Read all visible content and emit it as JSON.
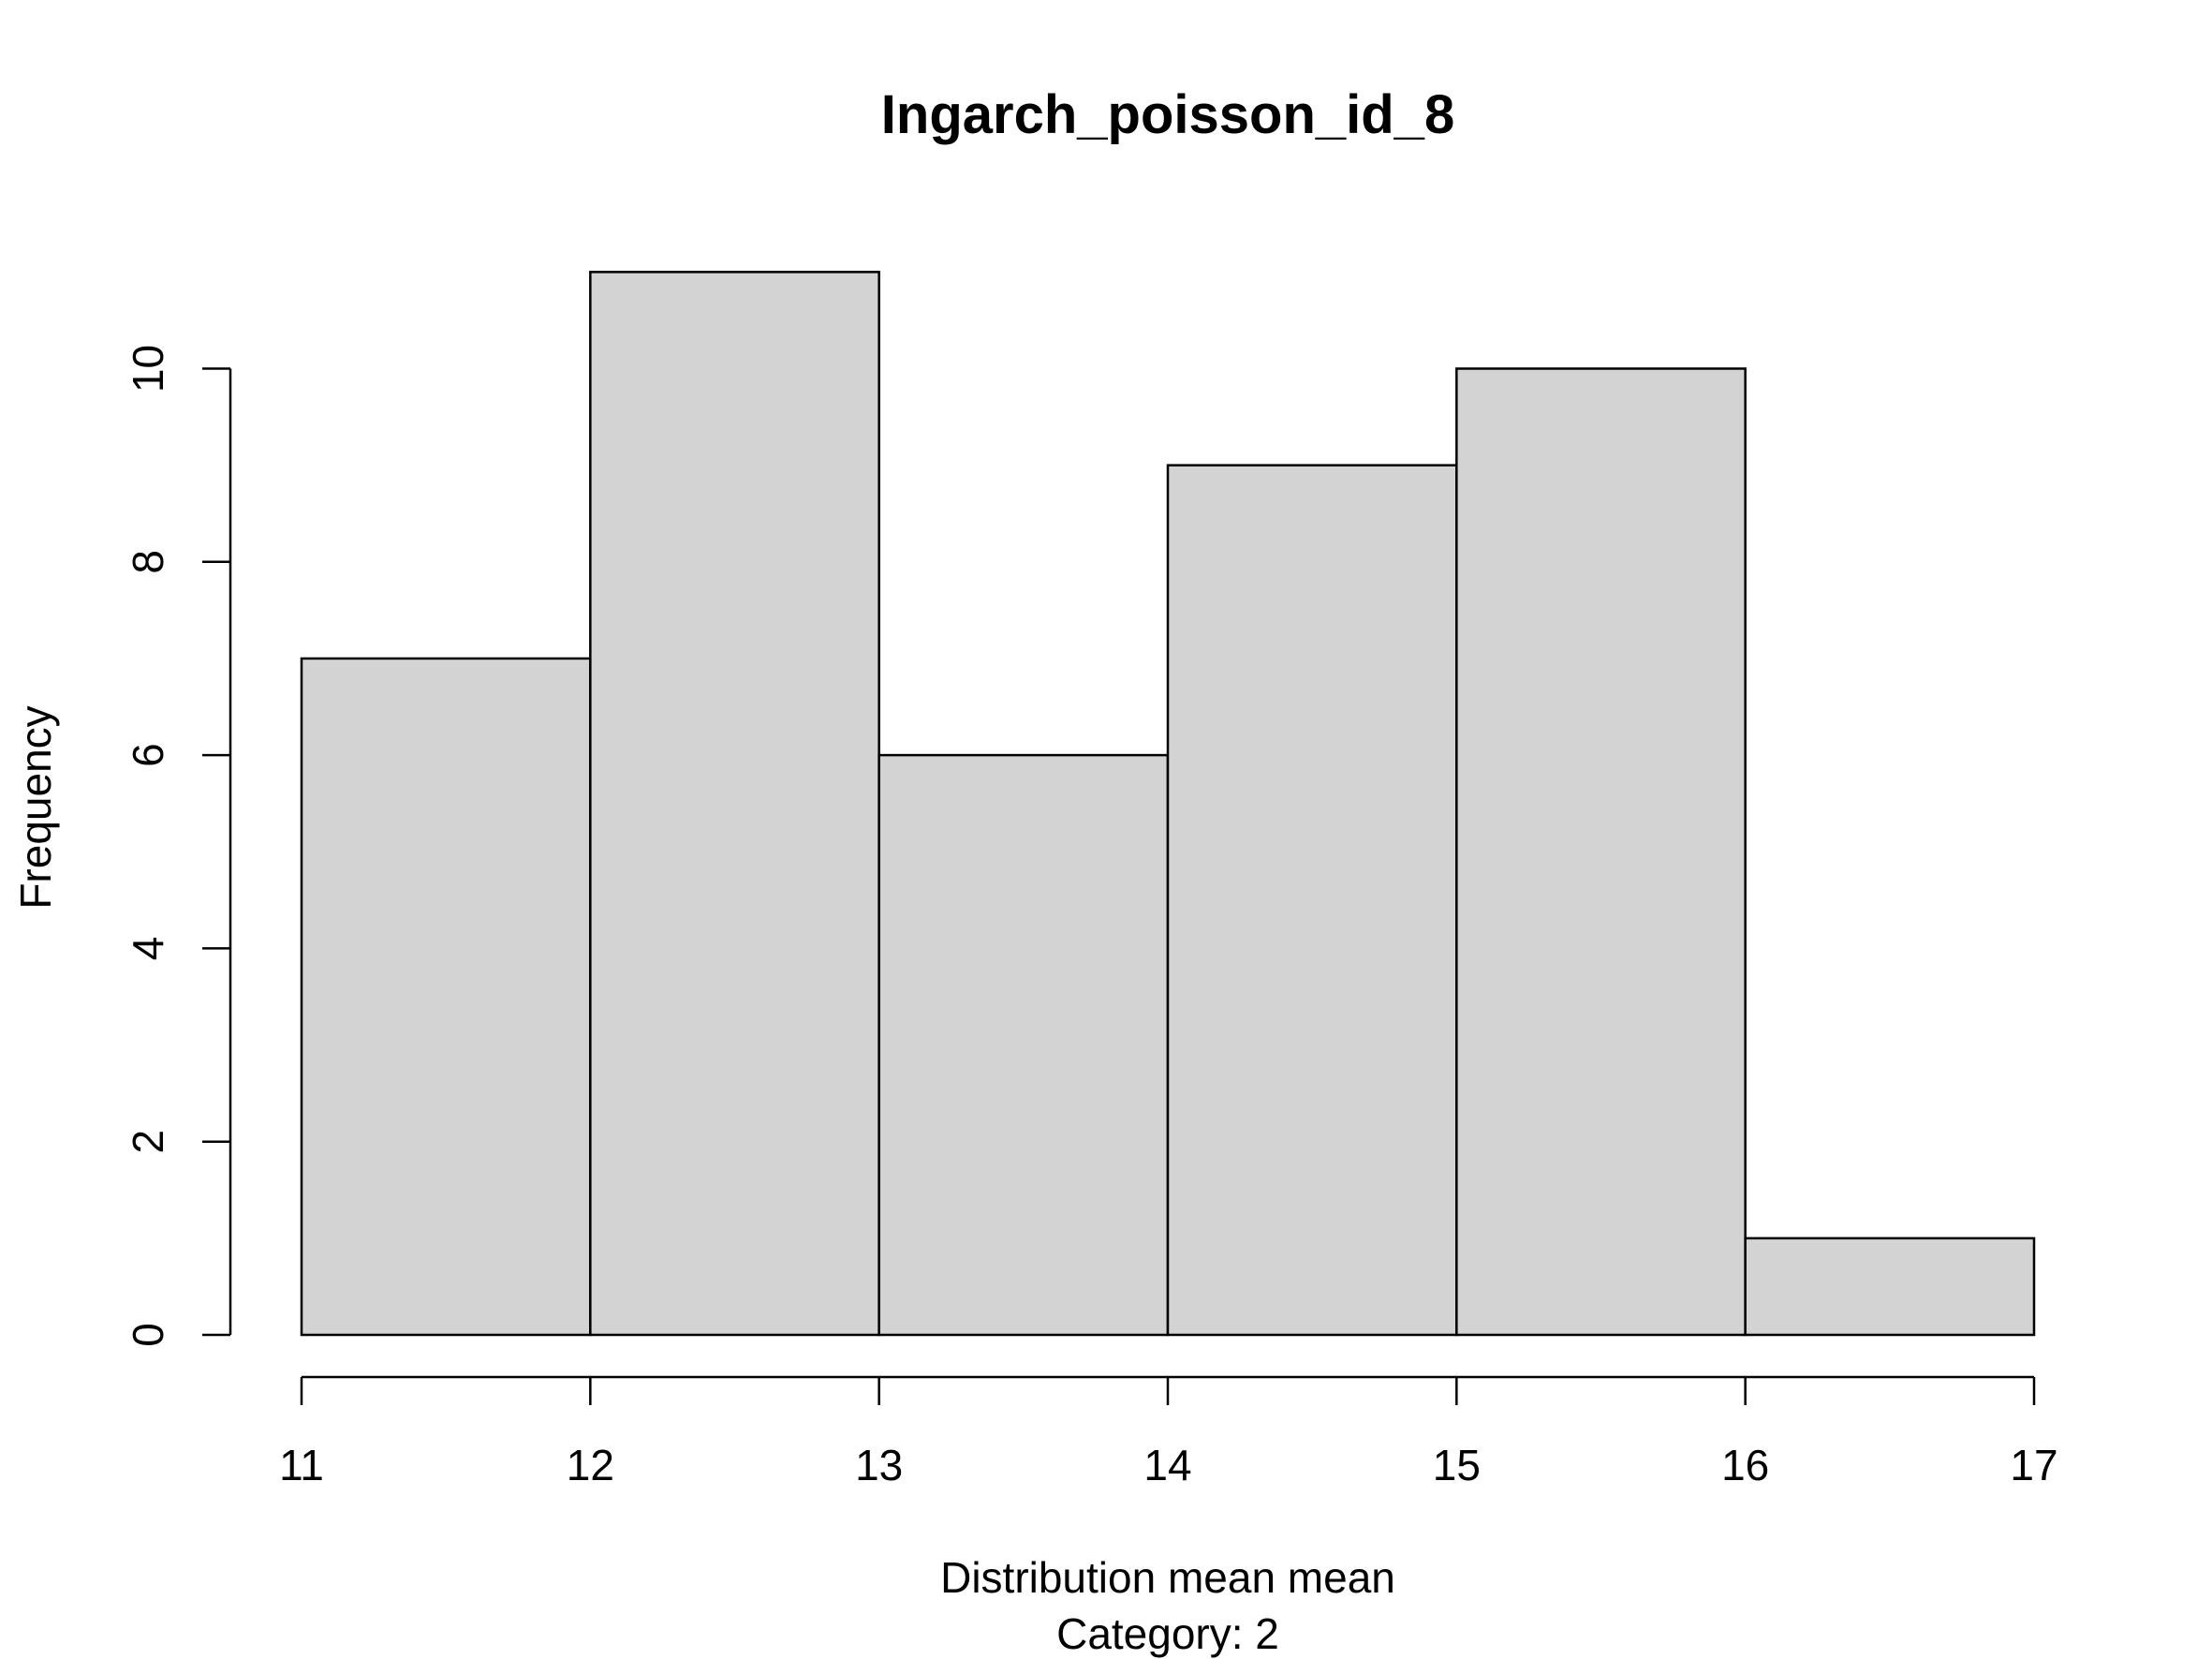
{
  "chart_data": {
    "type": "bar",
    "subtype": "histogram",
    "title": "Ingarch_poisson_id_8",
    "xlabel": "Distribution mean mean",
    "xsublabel": "Category: 2",
    "ylabel": "Frequency",
    "bins": [
      {
        "from": 11,
        "to": 12,
        "count": 7
      },
      {
        "from": 12,
        "to": 13,
        "count": 11
      },
      {
        "from": 13,
        "to": 14,
        "count": 6
      },
      {
        "from": 14,
        "to": 15,
        "count": 9
      },
      {
        "from": 15,
        "to": 16,
        "count": 10
      },
      {
        "from": 16,
        "to": 17,
        "count": 1
      }
    ],
    "xlim": [
      11,
      17
    ],
    "ylim": [
      0,
      11
    ],
    "xticks": [
      "11",
      "12",
      "13",
      "14",
      "15",
      "16",
      "17"
    ],
    "yticks": [
      "0",
      "2",
      "4",
      "6",
      "8",
      "10"
    ],
    "bar_color": "#d3d3d3",
    "grid": false,
    "legend": "none"
  }
}
